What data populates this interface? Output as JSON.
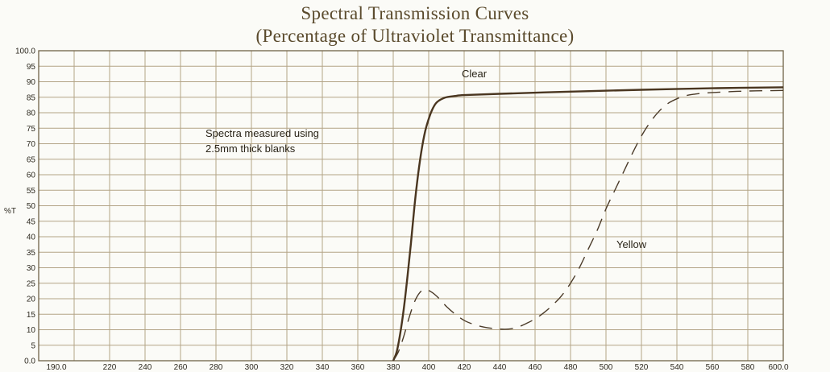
{
  "chart_data": {
    "type": "line",
    "title": "Spectral Transmission Curves",
    "subtitle": "(Percentage of Ultraviolet Transmittance)",
    "ylabel": "%T",
    "xlabel": "",
    "xlim": [
      180,
      600
    ],
    "ylim": [
      0,
      100
    ],
    "x_ticks": [
      "190.0",
      "220",
      "240",
      "260",
      "280",
      "300",
      "320",
      "340",
      "360",
      "380",
      "400",
      "420",
      "440",
      "460",
      "480",
      "500",
      "520",
      "540",
      "560",
      "580",
      "600.0"
    ],
    "y_ticks": [
      "0.0",
      "5",
      "10",
      "15",
      "20",
      "25",
      "30",
      "35",
      "40",
      "45",
      "50",
      "55",
      "60",
      "65",
      "70",
      "75",
      "80",
      "85",
      "90",
      "95",
      "100.0"
    ],
    "grid": true,
    "annotation": {
      "line1": "Spectra measured using",
      "line2": "2.5mm thick blanks"
    },
    "series": [
      {
        "name": "Clear",
        "style": "solid",
        "color": "#4a3620",
        "x": [
          380,
          382,
          384,
          386,
          388,
          390,
          392,
          394,
          396,
          398,
          400,
          402,
          404,
          406,
          408,
          410,
          415,
          420,
          440,
          480,
          520,
          560,
          600
        ],
        "y": [
          0,
          3,
          9,
          17,
          27,
          38,
          50,
          60,
          68,
          74,
          78,
          81,
          83,
          84,
          84.6,
          85,
          85.4,
          85.7,
          86.1,
          86.8,
          87.4,
          87.9,
          88.2
        ]
      },
      {
        "name": "Yellow",
        "style": "dashed",
        "color": "#4a3a28",
        "x": [
          380,
          383,
          386,
          389,
          392,
          395,
          398,
          402,
          406,
          410,
          415,
          420,
          425,
          430,
          435,
          440,
          445,
          450,
          455,
          460,
          465,
          470,
          475,
          480,
          485,
          490,
          495,
          500,
          505,
          510,
          515,
          520,
          525,
          530,
          535,
          540,
          545,
          550,
          555,
          560,
          570,
          580,
          590,
          600
        ],
        "y": [
          0,
          3,
          8,
          14,
          19,
          22,
          23,
          22,
          20,
          17.5,
          15,
          13,
          11.8,
          11,
          10.5,
          10.2,
          10.2,
          10.8,
          12,
          13.5,
          15.5,
          18,
          21,
          25,
          30,
          36,
          42,
          49,
          55,
          61,
          67,
          72.5,
          77,
          80.5,
          83,
          84.5,
          85.5,
          86,
          86.3,
          86.5,
          86.8,
          87,
          87.1,
          87.2
        ]
      }
    ]
  }
}
